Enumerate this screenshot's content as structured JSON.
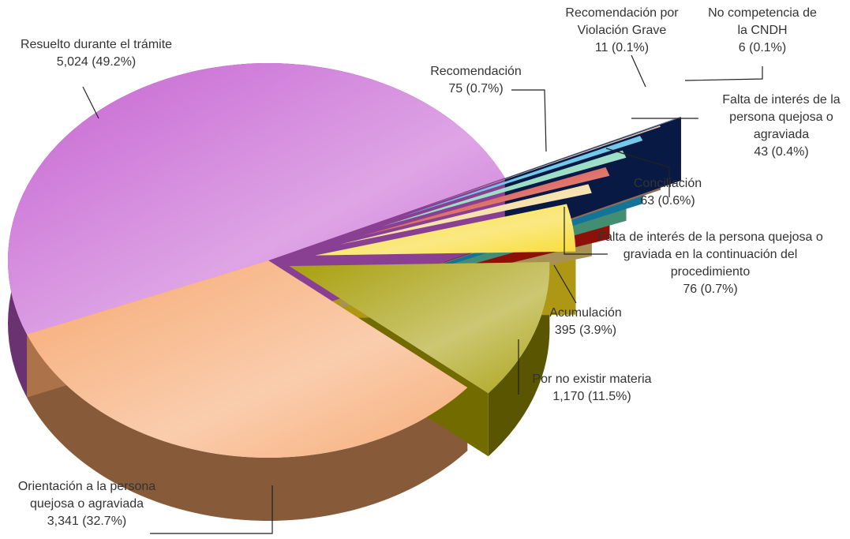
{
  "chart_data": {
    "type": "pie",
    "categories": [
      "Resuelto durante el trámite",
      "No competencia de la CNDH",
      "Recomendación por Violación Grave",
      "Falta de interés de la persona quejosa o agraviada",
      "Conciliación",
      "Recomendación",
      "Falta de interés de la persona quejosa o graviada en la continuación del procedimiento",
      "Acumulación",
      "Por no existir materia",
      "Orientación a la persona quejosa o agraviada"
    ],
    "values": [
      5024,
      6,
      11,
      43,
      63,
      75,
      76,
      395,
      1170,
      3341
    ],
    "value_labels": [
      "5,024 (49.2%)",
      "6 (0.1%)",
      "11 (0.1%)",
      "43 (0.4%)",
      "63 (0.6%)",
      "75 (0.7%)",
      "76 (0.7%)",
      "395 (3.9%)",
      "1,170 (11.5%)",
      "3,341 (32.7%)"
    ],
    "colors": [
      "#c35bd0",
      "#0b2560",
      "#c89a7e",
      "#1ba6dc",
      "#5fc9a4",
      "#c9180c",
      "#f0cf7a",
      "#f7d81e",
      "#a39a00",
      "#f6a46a"
    ]
  }
}
